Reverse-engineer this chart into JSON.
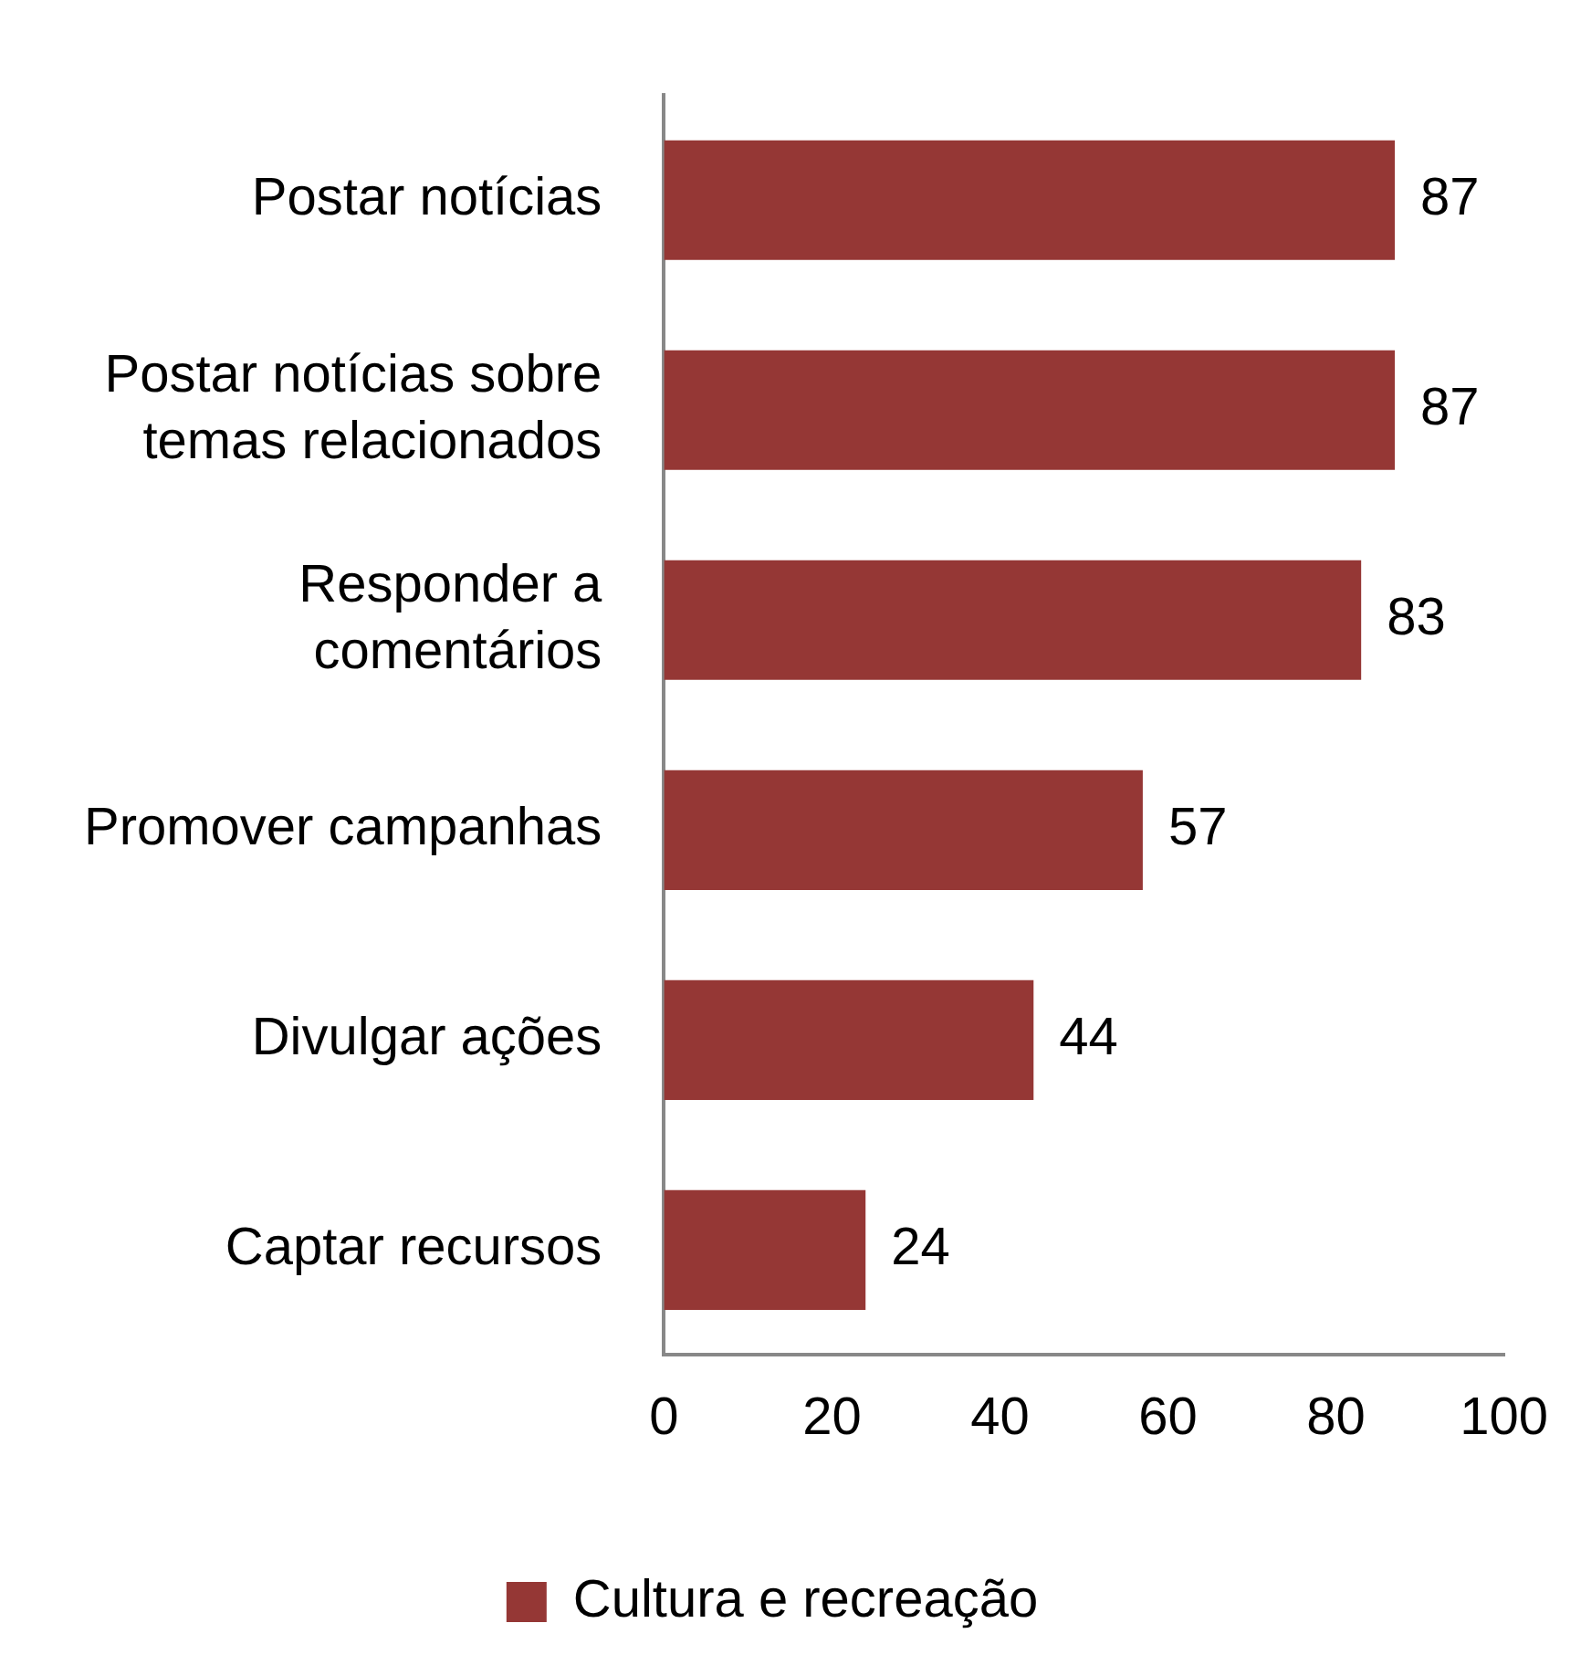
{
  "chart_data": {
    "type": "bar",
    "orientation": "horizontal",
    "categories": [
      "Postar notícias",
      "Postar notícias sobre temas relacionados",
      "Responder a comentários",
      "Promover campanhas",
      "Divulgar ações",
      "Captar recursos"
    ],
    "series": [
      {
        "name": "Cultura e recreação",
        "color": "#953735",
        "values": [
          87,
          87,
          83,
          57,
          44,
          24
        ]
      }
    ],
    "xlim": [
      0,
      100
    ],
    "xticks": [
      0,
      20,
      40,
      60,
      80,
      100
    ],
    "grid": false,
    "legend": "bottom",
    "data_labels": true
  }
}
